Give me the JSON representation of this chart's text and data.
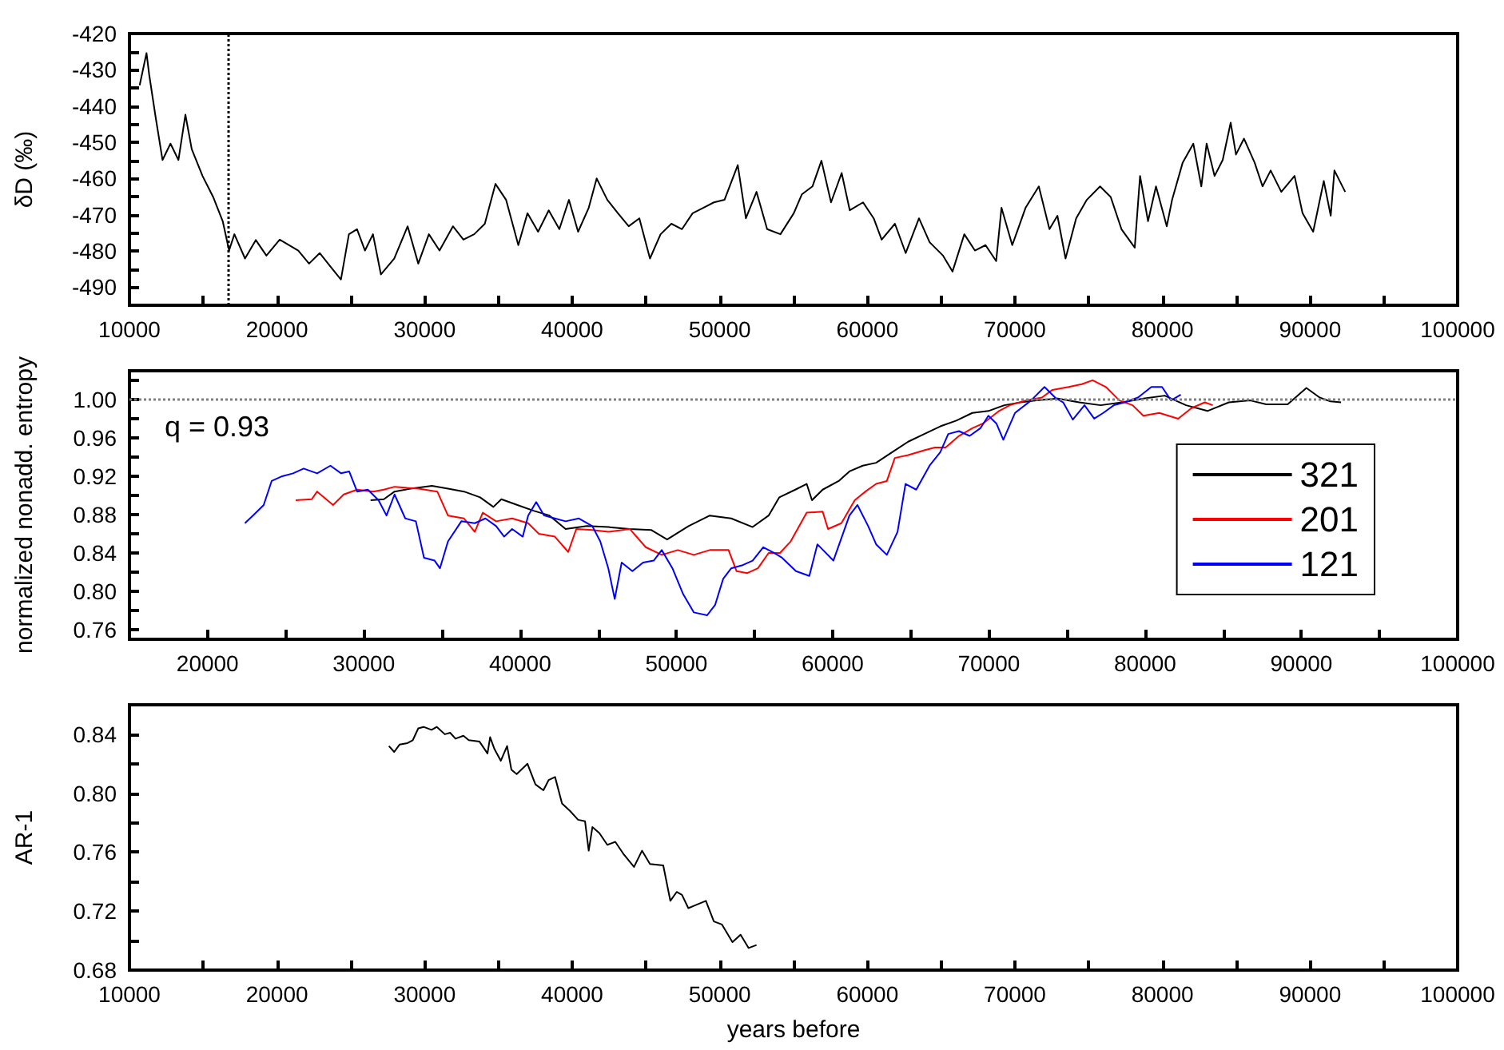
{
  "chart_data": [
    {
      "type": "line",
      "ylabel": "δD (‰)",
      "marker": "none",
      "line_style": "solid",
      "xlim": [
        10000,
        100000
      ],
      "xticks": [
        10000,
        {
          "value": 15000,
          "label": null
        },
        20000,
        {
          "value": 25000,
          "label": null
        },
        30000,
        {
          "value": 35000,
          "label": null
        },
        40000,
        {
          "value": 45000,
          "label": null
        },
        50000,
        {
          "value": 55000,
          "label": null
        },
        60000,
        {
          "value": 65000,
          "label": null
        },
        70000,
        {
          "value": 75000,
          "label": null
        },
        80000,
        {
          "value": 85000,
          "label": null
        },
        90000,
        {
          "value": 95000,
          "label": null
        },
        100000
      ],
      "ylim": [
        -495,
        -420
      ],
      "yticks": [
        -490,
        {
          "value": -485,
          "label": null
        },
        -480,
        {
          "value": -475,
          "label": null
        },
        -470,
        {
          "value": -465,
          "label": null
        },
        -460,
        {
          "value": -455,
          "label": null
        },
        -450,
        {
          "value": -445,
          "label": null
        },
        -440,
        {
          "value": -435,
          "label": null
        },
        -430,
        {
          "value": -425,
          "label": null
        },
        -420
      ],
      "ref_lines": [
        {
          "axis": "x",
          "value": 16700,
          "line_style": "dotted",
          "color": "#000000"
        }
      ],
      "series": [
        {
          "color": "#000000",
          "x": [
            10690,
            11155,
            11335,
            11770,
            12240,
            12780,
            13320,
            13790,
            14220,
            14950,
            15670,
            16320,
            16750,
            17110,
            17830,
            18560,
            19280,
            20180,
            21440,
            22170,
            22890,
            23610,
            24330,
            24870,
            25420,
            25960,
            26500,
            27040,
            27940,
            28850,
            29570,
            30290,
            31010,
            31920,
            32630,
            33360,
            34080,
            34800,
            35520,
            36350,
            36970,
            37690,
            38410,
            39130,
            39780,
            40400,
            41120,
            41660,
            42380,
            43100,
            43830,
            44550,
            45270,
            45990,
            46720,
            47440,
            48160,
            48880,
            49600,
            50320,
            51220,
            51770,
            52490,
            53210,
            54110,
            55015,
            55560,
            56280,
            56890,
            57540,
            58260,
            58810,
            59710,
            60430,
            60970,
            61870,
            62600,
            63500,
            64220,
            65130,
            65770,
            66570,
            67290,
            68010,
            68730,
            69090,
            69820,
            70720,
            71620,
            72340,
            72880,
            73430,
            74150,
            74870,
            75770,
            76490,
            77220,
            78120,
            78480,
            79020,
            79560,
            80290,
            80650,
            81370,
            82090,
            82630,
            82990,
            83530,
            84080,
            84620,
            84980,
            85520,
            86240,
            86780,
            87330,
            88050,
            88950,
            89490,
            90210,
            90930,
            91400,
            91650,
            92380
          ],
          "values": [
            -434.3,
            -425.4,
            -431.3,
            -443,
            -454.9,
            -450.4,
            -454.9,
            -442.4,
            -451.9,
            -459.3,
            -465.1,
            -471.8,
            -479.9,
            -475.4,
            -482.1,
            -477,
            -481.3,
            -476.9,
            -479.9,
            -483.5,
            -480.6,
            -484.3,
            -487.9,
            -475.4,
            -474,
            -479.9,
            -475.4,
            -486.5,
            -482.1,
            -473.2,
            -483.5,
            -475.4,
            -479.9,
            -473.2,
            -476.9,
            -475.4,
            -472.5,
            -461.5,
            -465.9,
            -478.4,
            -469.6,
            -474.7,
            -468.8,
            -474,
            -465.9,
            -474.7,
            -468.1,
            -460,
            -465.9,
            -469.6,
            -473.2,
            -471,
            -482.1,
            -475.4,
            -472.5,
            -474,
            -469.6,
            -468.1,
            -466.6,
            -465.9,
            -456.3,
            -471,
            -463.7,
            -474,
            -475.4,
            -469.6,
            -464.4,
            -462.2,
            -455.1,
            -466.6,
            -458.5,
            -468.8,
            -466.6,
            -471,
            -476.9,
            -472.5,
            -480.6,
            -471,
            -477.6,
            -481.3,
            -485.7,
            -475.4,
            -479.9,
            -478.4,
            -482.8,
            -468.1,
            -478.4,
            -468.1,
            -462.2,
            -474,
            -470.3,
            -482.1,
            -471,
            -465.9,
            -462.2,
            -465.1,
            -474,
            -479.1,
            -459.3,
            -471.8,
            -462.2,
            -473.2,
            -465.9,
            -455.6,
            -450.4,
            -462.2,
            -450.4,
            -459.3,
            -454.9,
            -444.6,
            -453.4,
            -449,
            -455.6,
            -462.2,
            -457.8,
            -463.7,
            -459.3,
            -469.6,
            -474.7,
            -460.7,
            -470.3,
            -457.8,
            -463.7
          ]
        }
      ]
    },
    {
      "type": "line",
      "ylabel": "normalized nonadd. entropy",
      "marker": "none",
      "line_style": "solid",
      "legend": "bottom right",
      "annotations": [
        "q = 0.93"
      ],
      "xlim": [
        15000,
        100000
      ],
      "xticks": [
        20000,
        {
          "value": 25000,
          "label": null
        },
        30000,
        {
          "value": 35000,
          "label": null
        },
        40000,
        {
          "value": 45000,
          "label": null
        },
        50000,
        {
          "value": 55000,
          "label": null
        },
        60000,
        {
          "value": 65000,
          "label": null
        },
        70000,
        {
          "value": 75000,
          "label": null
        },
        80000,
        {
          "value": 85000,
          "label": null
        },
        90000,
        {
          "value": 95000,
          "label": null
        },
        100000
      ],
      "ylim": [
        0.75,
        1.03
      ],
      "yticks": [
        0.76,
        {
          "value": 0.78,
          "label": null
        },
        {
          "value": 0.8,
          "label": "0.80"
        },
        {
          "value": 0.82,
          "label": null
        },
        0.84,
        {
          "value": 0.86,
          "label": null
        },
        0.88,
        {
          "value": 0.9,
          "label": null
        },
        0.92,
        {
          "value": 0.94,
          "label": null
        },
        0.96,
        {
          "value": 0.98,
          "label": null
        },
        {
          "value": 1,
          "label": "1.00"
        },
        {
          "value": 1.02,
          "label": null
        }
      ],
      "ref_lines": [
        {
          "axis": "y",
          "value": 1,
          "line_style": "dotted",
          "color": "#808080"
        }
      ],
      "series": [
        {
          "name": "321",
          "color": "#000000",
          "x": [
            30430,
            31280,
            31965,
            32990,
            34360,
            35385,
            36410,
            37440,
            38290,
            38800,
            39830,
            40855,
            41880,
            42910,
            44280,
            45645,
            47015,
            48380,
            49410,
            50780,
            52140,
            53510,
            54880,
            55905,
            56590,
            57615,
            58340,
            58680,
            59365,
            60390,
            61075,
            61930,
            62785,
            63810,
            64835,
            65865,
            66890,
            67915,
            68940,
            69970,
            70990,
            72020,
            73045,
            74415,
            75780,
            77150,
            78520,
            79885,
            81255,
            82620,
            83990,
            85360,
            86725,
            87750,
            89120,
            90320,
            91170,
            91860,
            92540
          ],
          "values": [
            0.895,
            0.896,
            0.904,
            0.907,
            0.91,
            0.907,
            0.904,
            0.898,
            0.888,
            0.896,
            0.89,
            0.884,
            0.879,
            0.865,
            0.868,
            0.867,
            0.865,
            0.864,
            0.854,
            0.868,
            0.879,
            0.876,
            0.867,
            0.879,
            0.898,
            0.906,
            0.912,
            0.895,
            0.906,
            0.915,
            0.925,
            0.931,
            0.934,
            0.945,
            0.956,
            0.964,
            0.972,
            0.978,
            0.986,
            0.988,
            0.994,
            0.997,
            0.999,
            1.001,
            0.997,
            0.994,
            0.997,
            1.001,
            1.004,
            0.994,
            0.988,
            0.997,
            0.999,
            0.995,
            0.995,
            1.012,
            1.002,
            0.998,
            0.997
          ]
        },
        {
          "name": "201",
          "color": "#ff0000",
          "x": [
            25640,
            26665,
            27010,
            28030,
            28715,
            29570,
            30600,
            31280,
            31965,
            32650,
            33505,
            34700,
            35385,
            36410,
            37100,
            37610,
            38465,
            39490,
            40515,
            41200,
            42225,
            43080,
            43595,
            44620,
            45645,
            47015,
            48040,
            49065,
            50090,
            51120,
            52140,
            53340,
            53855,
            54540,
            55220,
            55905,
            56630,
            57315,
            58340,
            59365,
            59705,
            60560,
            61415,
            62100,
            62785,
            63470,
            63980,
            64835,
            65865,
            66550,
            67230,
            68085,
            68940,
            69625,
            70650,
            71335,
            72360,
            73390,
            74070,
            75100,
            75950,
            76640,
            77490,
            78350,
            79200,
            79885,
            80910,
            82110,
            82965,
            83820,
            84330
          ],
          "values": [
            0.895,
            0.896,
            0.904,
            0.89,
            0.901,
            0.906,
            0.904,
            0.906,
            0.909,
            0.908,
            0.907,
            0.904,
            0.879,
            0.876,
            0.862,
            0.882,
            0.873,
            0.876,
            0.871,
            0.86,
            0.857,
            0.841,
            0.865,
            0.864,
            0.862,
            0.865,
            0.846,
            0.838,
            0.843,
            0.838,
            0.843,
            0.843,
            0.821,
            0.819,
            0.824,
            0.84,
            0.84,
            0.852,
            0.882,
            0.883,
            0.865,
            0.871,
            0.895,
            0.904,
            0.912,
            0.915,
            0.939,
            0.942,
            0.947,
            0.95,
            0.95,
            0.962,
            0.97,
            0.975,
            0.988,
            0.994,
            0.999,
            1.002,
            1.01,
            1.013,
            1.016,
            1.02,
            1.013,
            0.999,
            0.994,
            0.983,
            0.986,
            0.98,
            0.991,
            0.997,
            0.994
          ]
        },
        {
          "name": "121",
          "color": "#0000ff",
          "x": [
            22390,
            22900,
            23590,
            24100,
            24780,
            25470,
            26150,
            27010,
            27860,
            28545,
            29060,
            29570,
            30255,
            30940,
            31450,
            31965,
            32650,
            33330,
            33850,
            34530,
            34870,
            35385,
            36240,
            37100,
            37780,
            38465,
            38980,
            39490,
            40170,
            40515,
            41030,
            41540,
            42225,
            42910,
            43765,
            44620,
            45130,
            45645,
            46055,
            46500,
            47185,
            47870,
            48550,
            49065,
            49750,
            50435,
            51120,
            51970,
            52485,
            52995,
            53510,
            54195,
            54880,
            55560,
            56250,
            56760,
            57655,
            58510,
            59025,
            60050,
            61075,
            61590,
            62275,
            62785,
            63470,
            64155,
            64665,
            65350,
            66205,
            66890,
            67400,
            68085,
            68770,
            69455,
            69970,
            70480,
            70925,
            71675,
            72700,
            73560,
            74240,
            74755,
            75370,
            76120,
            76740,
            77320,
            78000,
            78690,
            79540,
            80400,
            81080,
            81660,
            82280
          ],
          "values": [
            0.871,
            0.879,
            0.89,
            0.915,
            0.92,
            0.923,
            0.928,
            0.923,
            0.931,
            0.923,
            0.925,
            0.904,
            0.906,
            0.895,
            0.879,
            0.901,
            0.876,
            0.873,
            0.835,
            0.832,
            0.824,
            0.852,
            0.873,
            0.871,
            0.876,
            0.868,
            0.857,
            0.865,
            0.857,
            0.879,
            0.893,
            0.879,
            0.876,
            0.873,
            0.876,
            0.868,
            0.852,
            0.824,
            0.792,
            0.83,
            0.821,
            0.83,
            0.832,
            0.843,
            0.824,
            0.797,
            0.778,
            0.775,
            0.786,
            0.813,
            0.824,
            0.827,
            0.832,
            0.846,
            0.84,
            0.835,
            0.821,
            0.816,
            0.849,
            0.832,
            0.879,
            0.89,
            0.868,
            0.849,
            0.838,
            0.862,
            0.912,
            0.906,
            0.931,
            0.945,
            0.964,
            0.967,
            0.962,
            0.97,
            0.983,
            0.975,
            0.958,
            0.986,
            0.999,
            1.013,
            1.002,
            0.997,
            0.979,
            0.994,
            0.98,
            0.986,
            0.994,
            0.997,
            1.002,
            1.013,
            1.013,
            0.999,
            1.005
          ]
        }
      ]
    },
    {
      "type": "line",
      "xlabel": "years before",
      "ylabel": "AR-1",
      "marker": "none",
      "line_style": "solid",
      "xlim": [
        10000,
        100000
      ],
      "xticks": [
        10000,
        {
          "value": 15000,
          "label": null
        },
        20000,
        {
          "value": 25000,
          "label": null
        },
        30000,
        {
          "value": 35000,
          "label": null
        },
        40000,
        {
          "value": 45000,
          "label": null
        },
        50000,
        {
          "value": 55000,
          "label": null
        },
        60000,
        {
          "value": 65000,
          "label": null
        },
        70000,
        {
          "value": 75000,
          "label": null
        },
        80000,
        {
          "value": 85000,
          "label": null
        },
        90000,
        {
          "value": 95000,
          "label": null
        },
        100000
      ],
      "ylim": [
        0.68,
        0.86
      ],
      "yticks": [
        0.68,
        {
          "value": 0.7,
          "label": null
        },
        0.72,
        {
          "value": 0.74,
          "label": null
        },
        0.76,
        {
          "value": 0.78,
          "label": null
        },
        {
          "value": 0.8,
          "label": "0.80"
        },
        {
          "value": 0.82,
          "label": null
        },
        0.84
      ],
      "series": [
        {
          "color": "#000000",
          "x": [
            27580,
            27940,
            28300,
            28840,
            29200,
            29570,
            29930,
            30470,
            30830,
            31370,
            31730,
            32090,
            32630,
            32990,
            33720,
            34260,
            34440,
            34730,
            35160,
            35590,
            35880,
            36240,
            36970,
            37510,
            38050,
            38410,
            38840,
            39310,
            39850,
            40400,
            40870,
            41120,
            41370,
            41840,
            42380,
            42920,
            43460,
            44190,
            44730,
            45270,
            46170,
            46650,
            47080,
            47440,
            47870,
            48340,
            49060,
            49600,
            50140,
            50860,
            51410,
            51950,
            52490
          ],
          "values": [
            0.832,
            0.828,
            0.833,
            0.834,
            0.836,
            0.844,
            0.845,
            0.843,
            0.845,
            0.84,
            0.841,
            0.837,
            0.839,
            0.836,
            0.835,
            0.827,
            0.838,
            0.83,
            0.822,
            0.832,
            0.816,
            0.813,
            0.82,
            0.806,
            0.802,
            0.809,
            0.811,
            0.793,
            0.788,
            0.782,
            0.781,
            0.761,
            0.777,
            0.773,
            0.765,
            0.767,
            0.759,
            0.75,
            0.761,
            0.752,
            0.751,
            0.727,
            0.733,
            0.731,
            0.722,
            0.724,
            0.727,
            0.713,
            0.711,
            0.699,
            0.704,
            0.695,
            0.697
          ]
        }
      ]
    }
  ]
}
